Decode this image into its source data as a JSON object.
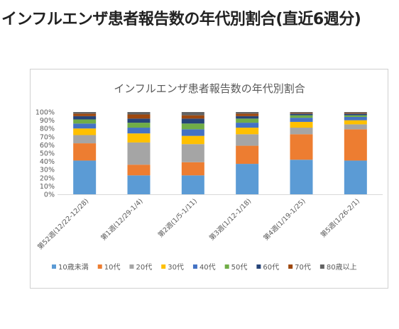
{
  "page": {
    "title": "インフルエンザ患者報告数の年代別割合(直近6週分)"
  },
  "chart_data": {
    "type": "bar",
    "stacked": true,
    "percent": true,
    "title": "インフルエンザ患者報告数の年代別割合",
    "xlabel": "",
    "ylabel": "",
    "ylim": [
      0,
      100
    ],
    "yticks": [
      "0%",
      "10%",
      "20%",
      "30%",
      "40%",
      "50%",
      "60%",
      "70%",
      "80%",
      "90%",
      "100%"
    ],
    "grid": false,
    "legend": "bottom",
    "categories": [
      "第52週(12/22-12/28)",
      "第1週(12/29-1/4)",
      "第2週(1/5-1/11)",
      "第3週(1/12-1/18)",
      "第4週(1/19-1/25)",
      "第5週(1/26-2/1)"
    ],
    "series": [
      {
        "name": "10歳未満",
        "color": "#5B9BD5",
        "values": [
          41,
          23,
          23,
          37,
          42,
          41
        ]
      },
      {
        "name": "10代",
        "color": "#ED7D31",
        "values": [
          21,
          13,
          16,
          22,
          31,
          38
        ]
      },
      {
        "name": "20代",
        "color": "#A5A5A5",
        "values": [
          10,
          27,
          22,
          14,
          8,
          6
        ]
      },
      {
        "name": "30代",
        "color": "#FFC000",
        "values": [
          8,
          11,
          10,
          8,
          7,
          5
        ]
      },
      {
        "name": "40代",
        "color": "#4472C4",
        "values": [
          6,
          7,
          8,
          6,
          5,
          4
        ]
      },
      {
        "name": "50代",
        "color": "#70AD47",
        "values": [
          5,
          6,
          7,
          5,
          3,
          2
        ]
      },
      {
        "name": "60代",
        "color": "#264478",
        "values": [
          4,
          5,
          6,
          3,
          2,
          2
        ]
      },
      {
        "name": "70代",
        "color": "#9E480E",
        "values": [
          3,
          5,
          4,
          3,
          1,
          1
        ]
      },
      {
        "name": "80歳以上",
        "color": "#636363",
        "values": [
          2,
          3,
          4,
          2,
          1,
          1
        ]
      }
    ]
  }
}
